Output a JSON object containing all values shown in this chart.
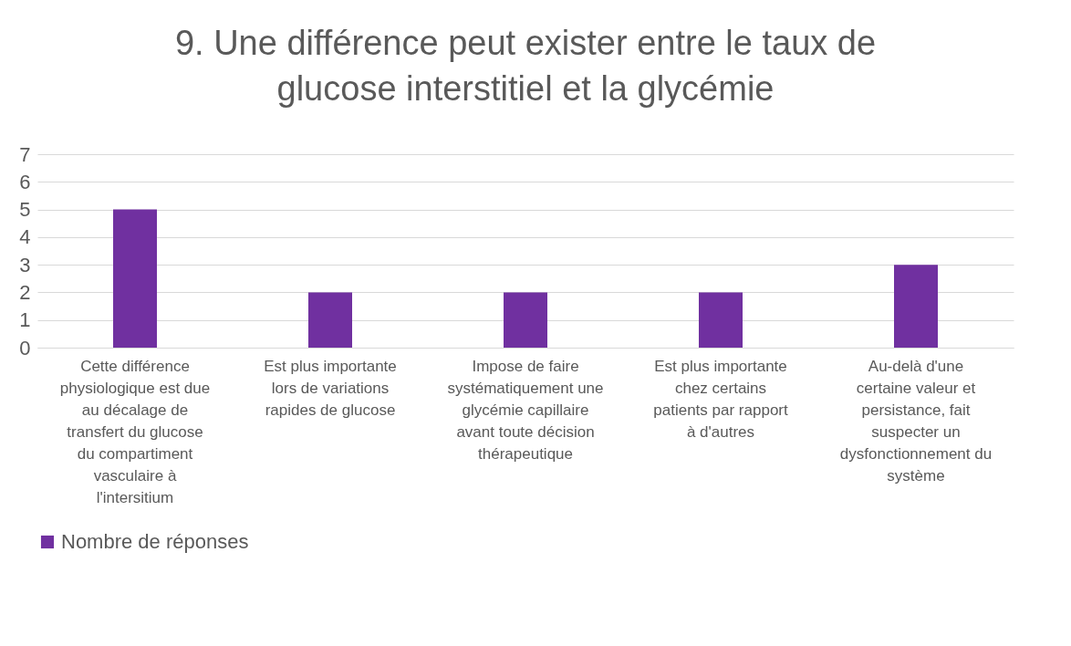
{
  "chart_data": {
    "type": "bar",
    "title": "9. Une différence peut exister entre le taux de glucose interstitiel et la glycémie",
    "categories": [
      "Cette différence physiologique est due au décalage de transfert du glucose du compartiment vasculaire à l'intersitium",
      "Est plus importante lors de variations rapides de glucose",
      "Impose de faire systématiquement une glycémie capillaire avant toute décision thérapeutique",
      "Est plus importante chez certains patients par rapport à d'autres",
      "Au-delà d'une certaine valeur et persistance, fait suspecter un dysfonctionnement du système"
    ],
    "series": [
      {
        "name": "Nombre de réponses",
        "color": "#7030a0",
        "values": [
          5,
          2,
          2,
          2,
          3
        ]
      }
    ],
    "ylim": [
      0,
      7
    ],
    "yticks": [
      0,
      1,
      2,
      3,
      4,
      5,
      6,
      7
    ],
    "grid": "y",
    "legend": "bottom"
  }
}
